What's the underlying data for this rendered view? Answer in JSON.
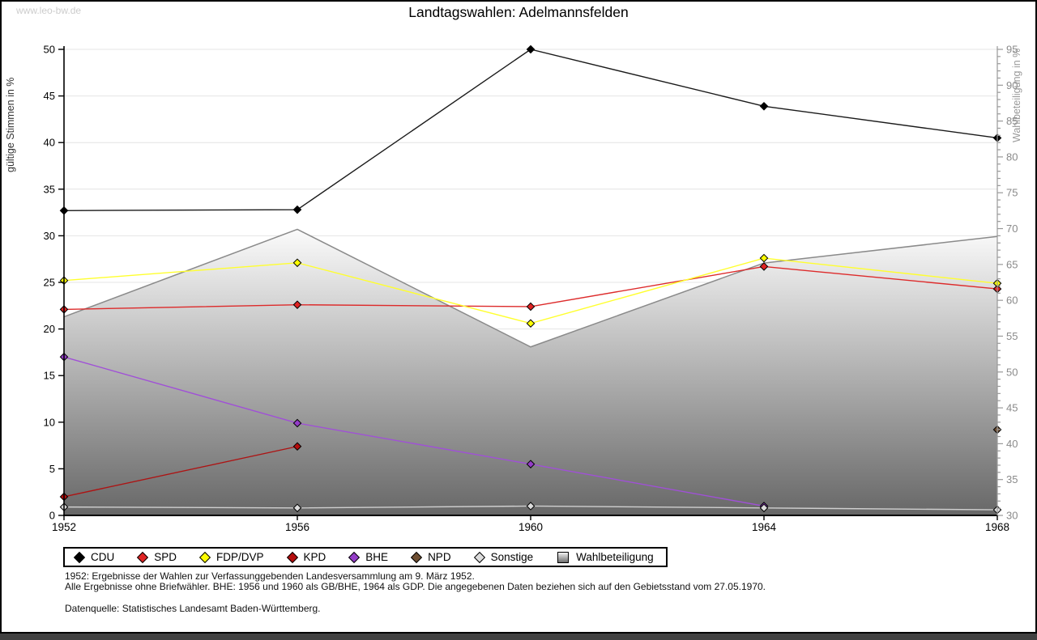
{
  "window": {
    "watermark": "www.leo-bw.de",
    "title": "Landtagswahlen: Adelmannsfelden"
  },
  "footnotes": {
    "line1": "1952: Ergebnisse der Wahlen zur Verfassunggebenden Landesversammlung am 9. März 1952.",
    "line2": "Alle Ergebnisse ohne Briefwähler. BHE: 1956 und 1960 als GB/BHE, 1964 als GDP. Die angegebenen Daten beziehen sich auf den Gebietsstand vom 27.05.1970.",
    "source": "Datenquelle: Statistisches Landesamt Baden-Württemberg."
  },
  "chart_data": {
    "type": "line",
    "title": "Landtagswahlen: Adelmannsfelden",
    "x": [
      1952,
      1956,
      1960,
      1964,
      1968
    ],
    "grid": "horizontal",
    "legend_position": "bottom",
    "left_axis": {
      "label": "gültige Stimmen in %",
      "min": 0,
      "max": 50,
      "tick_step": 5
    },
    "right_axis": {
      "label": "Wahlbeteiligung in %",
      "min": 30,
      "max": 95,
      "tick_step": 5,
      "minor_step": 1
    },
    "series": [
      {
        "name": "CDU",
        "color": "#000000",
        "line_color": "#1a1a1a",
        "values": [
          32.7,
          32.8,
          50.0,
          43.9,
          40.5
        ]
      },
      {
        "name": "SPD",
        "color": "#e02323",
        "line_color": "#dd2b2b",
        "values": [
          22.1,
          22.6,
          22.4,
          26.7,
          24.3
        ]
      },
      {
        "name": "FDP/DVP",
        "color": "#ffff00",
        "line_color": "#ffff2e",
        "values": [
          25.2,
          27.1,
          20.6,
          27.6,
          24.9
        ]
      },
      {
        "name": "KPD",
        "color": "#b50d0d",
        "line_color": "#ad1414",
        "values": [
          2.0,
          7.4,
          null,
          null,
          null
        ]
      },
      {
        "name": "BHE",
        "color": "#943cc8",
        "line_color": "#a050d7",
        "values": [
          17.0,
          9.9,
          5.5,
          1.0,
          null
        ]
      },
      {
        "name": "NPD",
        "color": "#6f4f32",
        "line_color": "#6f4f32",
        "values": [
          null,
          null,
          null,
          null,
          9.2
        ]
      },
      {
        "name": "Sonstige",
        "color": "#dcdcdc",
        "line_color": "#cfcfcf",
        "values": [
          0.9,
          0.8,
          1.0,
          0.8,
          0.6
        ]
      }
    ],
    "turnout_series": {
      "name": "Wahlbeteiligung",
      "axis": "right",
      "boundary_color": "#8a8a8a",
      "fill_top": "#fbfbfb",
      "fill_bottom": "#676767",
      "values": [
        57.7,
        69.9,
        53.5,
        65.2,
        68.9
      ]
    }
  }
}
